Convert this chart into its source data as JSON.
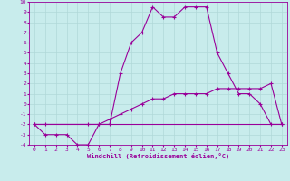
{
  "xlabel": "Windchill (Refroidissement éolien,°C)",
  "bg_color": "#c8ecec",
  "line_color": "#990099",
  "grid_color": "#b0d8d8",
  "xlim": [
    -0.5,
    23.5
  ],
  "ylim": [
    -4,
    10
  ],
  "xtick_labels": [
    "0",
    "1",
    "2",
    "3",
    "4",
    "5",
    "6",
    "7",
    "8",
    "9",
    "10",
    "11",
    "12",
    "13",
    "14",
    "15",
    "16",
    "17",
    "18",
    "19",
    "20",
    "21",
    "22",
    "23"
  ],
  "xtick_pos": [
    0,
    1,
    2,
    3,
    4,
    5,
    6,
    7,
    8,
    9,
    10,
    11,
    12,
    13,
    14,
    15,
    16,
    17,
    18,
    19,
    20,
    21,
    22,
    23
  ],
  "ytick_pos": [
    -4,
    -3,
    -2,
    -1,
    0,
    1,
    2,
    3,
    4,
    5,
    6,
    7,
    8,
    9,
    10
  ],
  "line1_x": [
    0,
    1,
    2,
    3,
    4,
    5,
    6,
    7,
    8,
    9,
    10,
    11,
    12,
    13,
    14,
    15,
    16,
    17,
    18,
    19,
    20,
    21,
    22,
    23
  ],
  "line1_y": [
    -2,
    -3,
    -3,
    -3,
    -4,
    -4,
    -2,
    -2,
    3,
    6,
    7,
    9.5,
    8.5,
    8.5,
    9.5,
    9.5,
    9.5,
    5,
    3,
    1,
    1,
    0,
    -2,
    -2
  ],
  "line2_x": [
    0,
    1,
    5,
    6,
    7,
    8,
    9,
    10,
    11,
    12,
    13,
    14,
    15,
    16,
    17,
    18,
    19,
    20,
    21,
    22,
    23
  ],
  "line2_y": [
    -2,
    -2,
    -2,
    -2,
    -1.5,
    -1,
    -0.5,
    0,
    0.5,
    0.5,
    1,
    1,
    1,
    1,
    1.5,
    1.5,
    1.5,
    1.5,
    1.5,
    2,
    -2
  ],
  "line3_x": [
    0,
    23
  ],
  "line3_y": [
    -2,
    -2
  ]
}
